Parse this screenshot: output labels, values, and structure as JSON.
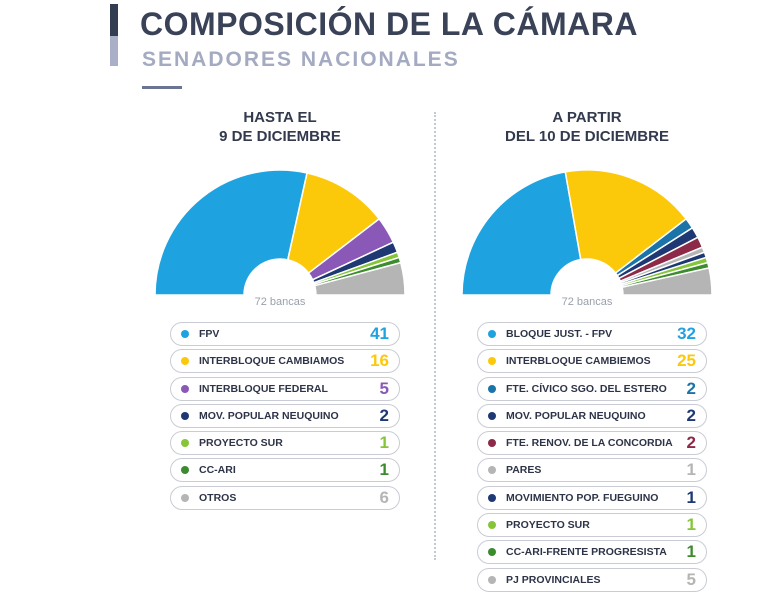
{
  "header": {
    "title": "COMPOSICIÓN DE LA CÁMARA",
    "subtitle": "SENADORES NACIONALES"
  },
  "chart_data": [
    {
      "type": "pie",
      "title": "HASTA EL\n9 DE DICIEMBRE",
      "title_lines": [
        "HASTA EL",
        "9 DE DICIEMBRE"
      ],
      "total_label": "72 bancas",
      "categories": [
        "FPV",
        "INTERBLOQUE CAMBIAMOS",
        "INTERBLOQUE FEDERAL",
        "MOV. POPULAR NEUQUINO",
        "PROYECTO SUR",
        "CC-ARI",
        "OTROS"
      ],
      "values": [
        41,
        16,
        5,
        2,
        1,
        1,
        6
      ],
      "colors": [
        "#1fa3e0",
        "#fcc90a",
        "#8a59b8",
        "#1d3873",
        "#86c53a",
        "#3c8b2e",
        "#b5b5b5"
      ],
      "shape": "semicircle-donut"
    },
    {
      "type": "pie",
      "title": "A PARTIR\nDEL 10 DE DICIEMBRE",
      "title_lines": [
        "A PARTIR",
        "DEL 10 DE DICIEMBRE"
      ],
      "total_label": "72 bancas",
      "categories": [
        "BLOQUE JUST. - FPV",
        "INTERBLOQUE CAMBIEMOS",
        "FTE. CÍVICO SGO. DEL ESTERO",
        "MOV. POPULAR NEUQUINO",
        "FTE. RENOV. DE LA CONCORDIA",
        "PARES",
        "MOVIMIENTO POP. FUEGUINO",
        "PROYECTO SUR",
        "CC-ARI-FRENTE PROGRESISTA",
        "PJ PROVINCIALES"
      ],
      "values": [
        32,
        25,
        2,
        2,
        2,
        1,
        1,
        1,
        1,
        5
      ],
      "colors": [
        "#1fa3e0",
        "#fcc90a",
        "#1a74a8",
        "#1d3873",
        "#8c2a47",
        "#b5b5b5",
        "#1d3873",
        "#86c53a",
        "#3c8b2e",
        "#b5b5b5"
      ],
      "shape": "semicircle-donut"
    }
  ]
}
